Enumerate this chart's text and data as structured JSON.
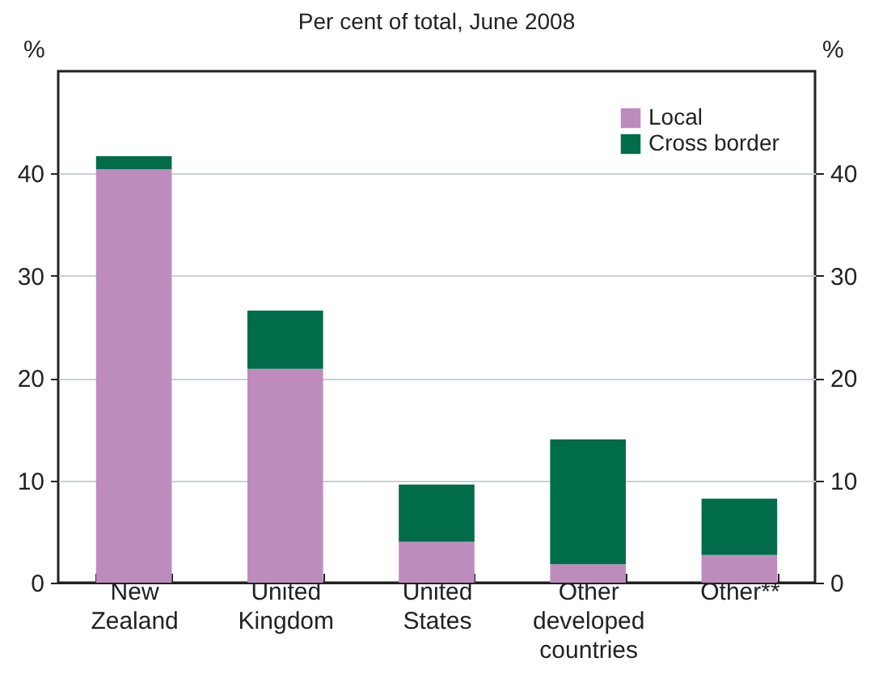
{
  "chart_data": {
    "type": "bar",
    "title": "Per cent of total, June 2008",
    "ylabel": "%",
    "y2label": "%",
    "categories": [
      "New Zealand",
      "United Kingdom",
      "United States",
      "Other developed countries",
      "Other**"
    ],
    "stacked": true,
    "series": [
      {
        "name": "Local",
        "color": "#bd8cbd",
        "values": [
          40.4,
          20.9,
          4.0,
          1.8,
          2.7
        ]
      },
      {
        "name": "Cross border",
        "color": "#006c4a",
        "values": [
          1.3,
          5.7,
          5.6,
          12.2,
          5.5
        ]
      }
    ],
    "ylim": [
      0,
      50
    ],
    "yticks": [
      0,
      10,
      20,
      30,
      40
    ],
    "y2lim": [
      0,
      50
    ],
    "y2ticks": [
      0,
      10,
      20,
      30,
      40
    ],
    "grid": true,
    "legend": "top right"
  }
}
